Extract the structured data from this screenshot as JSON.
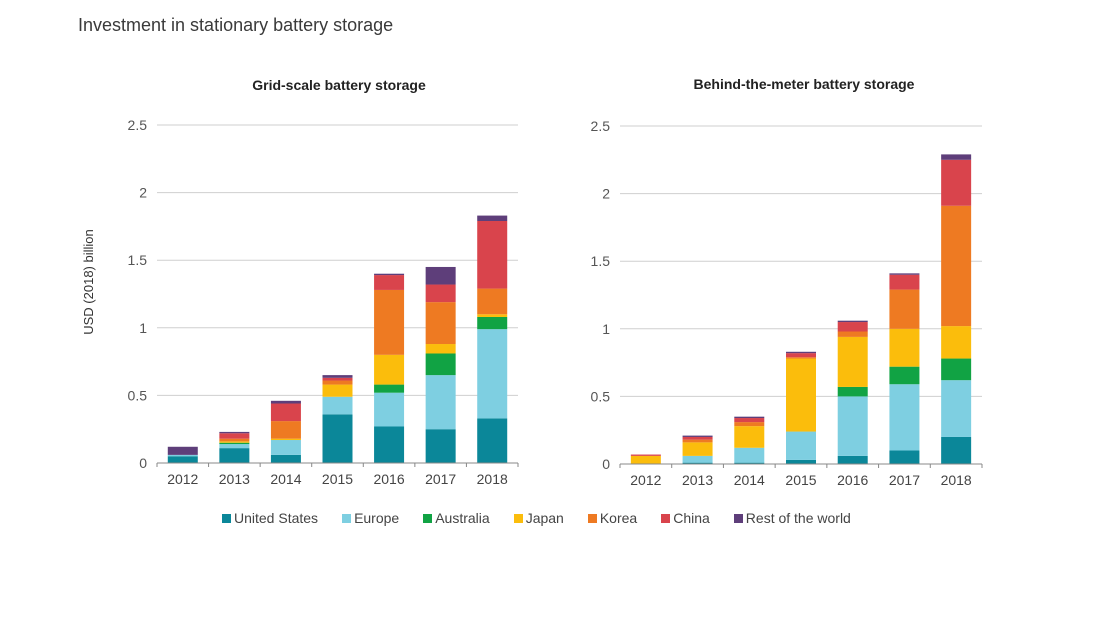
{
  "page_title": "Investment in stationary battery storage",
  "colors": {
    "United States": "#0b8799",
    "Europe": "#7ecfe1",
    "Australia": "#11a344",
    "Japan": "#fbbd0c",
    "Korea": "#ee7a22",
    "China": "#d9444c",
    "Rest of the world": "#5e3e7a"
  },
  "chart_data": [
    {
      "type": "bar",
      "stacked": true,
      "title": "Grid-scale battery storage",
      "ylabel": "USD (2018) billion",
      "ylim": [
        0,
        2.5
      ],
      "yticks": [
        "0",
        "0.5",
        "1",
        "1.5",
        "2",
        "2.5"
      ],
      "categories": [
        "2012",
        "2013",
        "2014",
        "2015",
        "2016",
        "2017",
        "2018"
      ],
      "series": [
        {
          "name": "United States",
          "values": [
            0.05,
            0.11,
            0.06,
            0.36,
            0.27,
            0.25,
            0.33
          ]
        },
        {
          "name": "Europe",
          "values": [
            0.01,
            0.03,
            0.11,
            0.13,
            0.25,
            0.4,
            0.66
          ]
        },
        {
          "name": "Australia",
          "values": [
            0.0,
            0.01,
            0.0,
            0.0,
            0.06,
            0.16,
            0.09
          ]
        },
        {
          "name": "Japan",
          "values": [
            0.0,
            0.01,
            0.01,
            0.09,
            0.22,
            0.07,
            0.02
          ]
        },
        {
          "name": "Korea",
          "values": [
            0.0,
            0.02,
            0.13,
            0.03,
            0.48,
            0.31,
            0.19
          ]
        },
        {
          "name": "China",
          "values": [
            0.0,
            0.04,
            0.13,
            0.02,
            0.11,
            0.13,
            0.5
          ]
        },
        {
          "name": "Rest of the world",
          "values": [
            0.06,
            0.01,
            0.02,
            0.02,
            0.01,
            0.13,
            0.04
          ]
        }
      ]
    },
    {
      "type": "bar",
      "stacked": true,
      "title": "Behind-the-meter battery storage",
      "ylabel": "",
      "ylim": [
        0,
        2.5
      ],
      "yticks": [
        "0",
        "0.5",
        "1",
        "1.5",
        "2",
        "2.5"
      ],
      "categories": [
        "2012",
        "2013",
        "2014",
        "2015",
        "2016",
        "2017",
        "2018"
      ],
      "series": [
        {
          "name": "United States",
          "values": [
            0.0,
            0.01,
            0.01,
            0.03,
            0.06,
            0.1,
            0.2
          ]
        },
        {
          "name": "Europe",
          "values": [
            0.0,
            0.05,
            0.11,
            0.21,
            0.44,
            0.49,
            0.42
          ]
        },
        {
          "name": "Australia",
          "values": [
            0.0,
            0.0,
            0.0,
            0.0,
            0.07,
            0.13,
            0.16
          ]
        },
        {
          "name": "Japan",
          "values": [
            0.06,
            0.1,
            0.16,
            0.54,
            0.37,
            0.28,
            0.24
          ]
        },
        {
          "name": "Korea",
          "values": [
            0.0,
            0.02,
            0.03,
            0.01,
            0.04,
            0.29,
            0.89
          ]
        },
        {
          "name": "China",
          "values": [
            0.01,
            0.02,
            0.03,
            0.03,
            0.07,
            0.11,
            0.34
          ]
        },
        {
          "name": "Rest of the world",
          "values": [
            0.0,
            0.01,
            0.01,
            0.01,
            0.01,
            0.01,
            0.04
          ]
        }
      ]
    }
  ],
  "legend": [
    "United States",
    "Europe",
    "Australia",
    "Japan",
    "Korea",
    "China",
    "Rest of the world"
  ]
}
